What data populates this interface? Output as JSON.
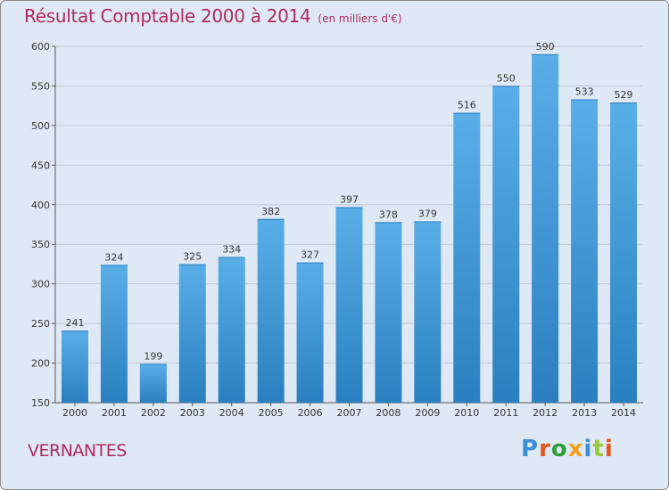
{
  "header": {
    "title": "Résultat Comptable 2000 à 2014",
    "subtitle": "(en milliers d'€)"
  },
  "footer": {
    "place": "VERNANTES",
    "brand": "Proxiti"
  },
  "colors": {
    "title": "#b02a5c",
    "background": "#dfe9f5",
    "bar_top": "#5aaee8",
    "bar_bottom": "#2a7fc0",
    "logo": [
      "#3b8fd9",
      "#e8541b",
      "#2e9e3a",
      "#f3a01c",
      "#3b8fd9",
      "#9bc53d",
      "#e8541b"
    ]
  },
  "chart_data": {
    "type": "bar",
    "title": "Résultat Comptable 2000 à 2014",
    "subtitle": "(en milliers d'€)",
    "categories": [
      "2000",
      "2001",
      "2002",
      "2003",
      "2004",
      "2005",
      "2006",
      "2007",
      "2008",
      "2009",
      "2010",
      "2011",
      "2012",
      "2013",
      "2014"
    ],
    "values": [
      241,
      324,
      199,
      325,
      334,
      382,
      327,
      397,
      378,
      379,
      516,
      550,
      590,
      533,
      529
    ],
    "ylim": [
      150,
      600
    ],
    "yticks": [
      150,
      200,
      250,
      300,
      350,
      400,
      450,
      500,
      550,
      600
    ],
    "grid": true,
    "xlabel": "",
    "ylabel": ""
  }
}
